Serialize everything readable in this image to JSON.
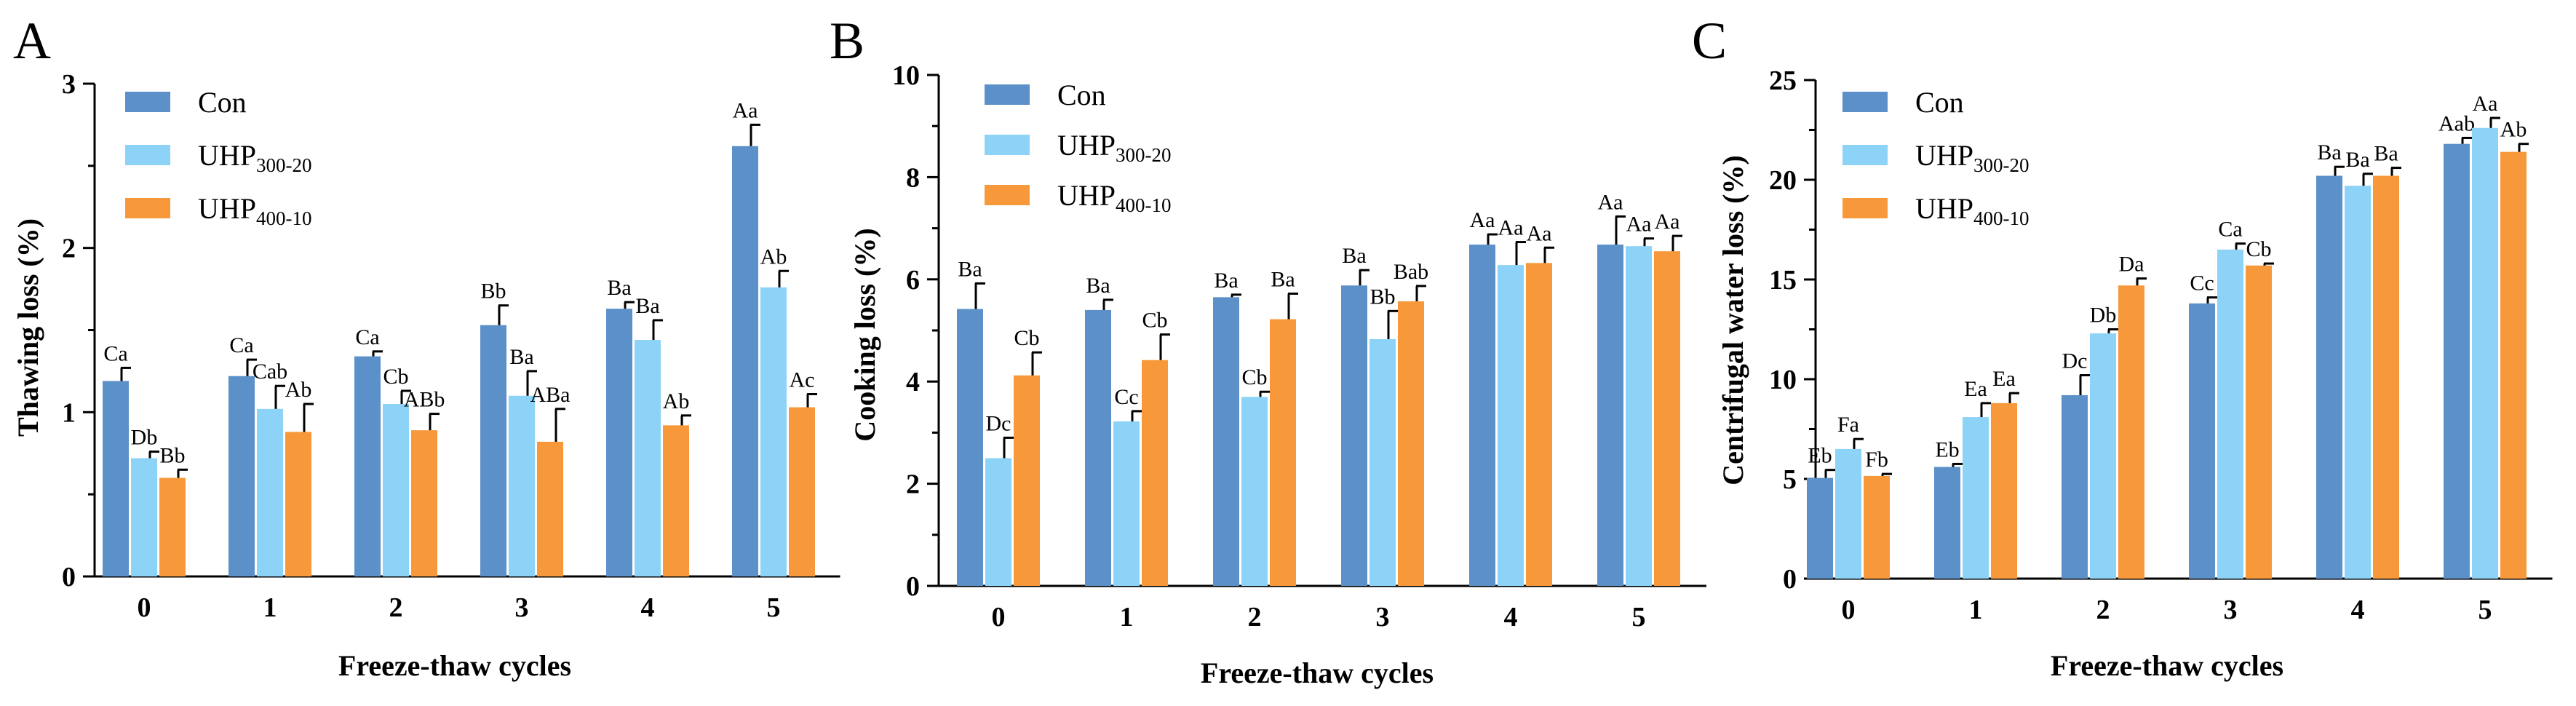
{
  "figure": {
    "colors": {
      "Con": "#5b90c8",
      "UHP300-20": "#8dd3f7",
      "UHP400-10": "#f7993a"
    }
  },
  "chart_data": [
    {
      "type": "bar",
      "panel": "A",
      "title": "",
      "xlabel": "Freeze-thaw cycles",
      "ylabel": "Thawing loss (%)",
      "ylim": [
        0,
        3
      ],
      "yticks": [
        "0",
        "1",
        "2",
        "3"
      ],
      "legend_placement": "top-left",
      "categories": [
        "0",
        "1",
        "2",
        "3",
        "4",
        "5"
      ],
      "series": [
        {
          "name": "Con",
          "legend_main": "Con",
          "legend_sub": "",
          "values": [
            1.19,
            1.22,
            1.34,
            1.53,
            1.63,
            2.62
          ],
          "errors": [
            0.08,
            0.1,
            0.03,
            0.12,
            0.04,
            0.13
          ],
          "labels": [
            "Ca",
            "Ca",
            "Ca",
            "Bb",
            "Ba",
            "Aa"
          ]
        },
        {
          "name": "UHP300-20",
          "legend_main": "UHP",
          "legend_sub": "300-20",
          "values": [
            0.72,
            1.02,
            1.05,
            1.1,
            1.44,
            1.76
          ],
          "errors": [
            0.04,
            0.14,
            0.08,
            0.15,
            0.12,
            0.1
          ],
          "labels": [
            "Db",
            "Cab",
            "Cb",
            "Ba",
            "Ba",
            "Ab"
          ]
        },
        {
          "name": "UHP400-10",
          "legend_main": "UHP",
          "legend_sub": "400-10",
          "values": [
            0.6,
            0.88,
            0.89,
            0.82,
            0.92,
            1.03
          ],
          "errors": [
            0.05,
            0.17,
            0.1,
            0.2,
            0.06,
            0.08
          ],
          "labels": [
            "Bb",
            "Ab",
            "ABb",
            "ABa",
            "Ab",
            "Ac"
          ]
        }
      ]
    },
    {
      "type": "bar",
      "panel": "B",
      "title": "",
      "xlabel": "Freeze-thaw cycles",
      "ylabel": "Cooking loss (%)",
      "ylim": [
        0,
        10
      ],
      "yticks": [
        "0",
        "2",
        "4",
        "6",
        "8",
        "10"
      ],
      "legend_placement": "top-left",
      "categories": [
        "0",
        "1",
        "2",
        "3",
        "4",
        "5"
      ],
      "series": [
        {
          "name": "Con",
          "legend_main": "Con",
          "legend_sub": "",
          "values": [
            5.42,
            5.4,
            5.65,
            5.88,
            6.68,
            6.68
          ],
          "errors": [
            0.5,
            0.2,
            0.05,
            0.3,
            0.2,
            0.55
          ],
          "labels": [
            "Ba",
            "Ba",
            "Ba",
            "Ba",
            "Aa",
            "Aa"
          ]
        },
        {
          "name": "UHP300-20",
          "legend_main": "UHP",
          "legend_sub": "300-20",
          "values": [
            2.5,
            3.22,
            3.7,
            4.83,
            6.28,
            6.65
          ],
          "errors": [
            0.4,
            0.2,
            0.1,
            0.55,
            0.45,
            0.15
          ],
          "labels": [
            "Dc",
            "Cc",
            "Cb",
            "Bb",
            "Aa",
            "Aa"
          ]
        },
        {
          "name": "UHP400-10",
          "legend_main": "UHP",
          "legend_sub": "400-10",
          "values": [
            4.12,
            4.42,
            5.22,
            5.57,
            6.32,
            6.55
          ],
          "errors": [
            0.45,
            0.5,
            0.5,
            0.3,
            0.3,
            0.3
          ],
          "labels": [
            "Cb",
            "Cb",
            "Ba",
            "Bab",
            "Aa",
            "Aa"
          ]
        }
      ]
    },
    {
      "type": "bar",
      "panel": "C",
      "title": "",
      "xlabel": "Freeze-thaw cycles",
      "ylabel": "Centrifugal water loss (%)",
      "ylim": [
        0,
        25
      ],
      "yticks": [
        "0",
        "5",
        "10",
        "15",
        "20",
        "25"
      ],
      "legend_placement": "top-left",
      "categories": [
        "0",
        "1",
        "2",
        "3",
        "4",
        "5"
      ],
      "series": [
        {
          "name": "Con",
          "legend_main": "Con",
          "legend_sub": "",
          "values": [
            5.05,
            5.6,
            9.2,
            13.8,
            20.2,
            21.8
          ],
          "errors": [
            0.4,
            0.15,
            1.0,
            0.3,
            0.45,
            0.3
          ],
          "labels": [
            "Eb",
            "Eb",
            "Dc",
            "Cc",
            "Ba",
            "Aab"
          ]
        },
        {
          "name": "UHP300-20",
          "legend_main": "UHP",
          "legend_sub": "300-20",
          "values": [
            6.5,
            8.1,
            12.3,
            16.5,
            19.7,
            22.6
          ],
          "errors": [
            0.5,
            0.7,
            0.2,
            0.3,
            0.6,
            0.5
          ],
          "labels": [
            "Fa",
            "Ea",
            "Db",
            "Ca",
            "Ba",
            "Aa"
          ]
        },
        {
          "name": "UHP400-10",
          "legend_main": "UHP",
          "legend_sub": "400-10",
          "values": [
            5.15,
            8.8,
            14.7,
            15.7,
            20.2,
            21.4
          ],
          "errors": [
            0.1,
            0.5,
            0.35,
            0.1,
            0.4,
            0.4
          ],
          "labels": [
            "Fb",
            "Ea",
            "Da",
            "Cb",
            "Ba",
            "Ab"
          ]
        }
      ]
    }
  ]
}
